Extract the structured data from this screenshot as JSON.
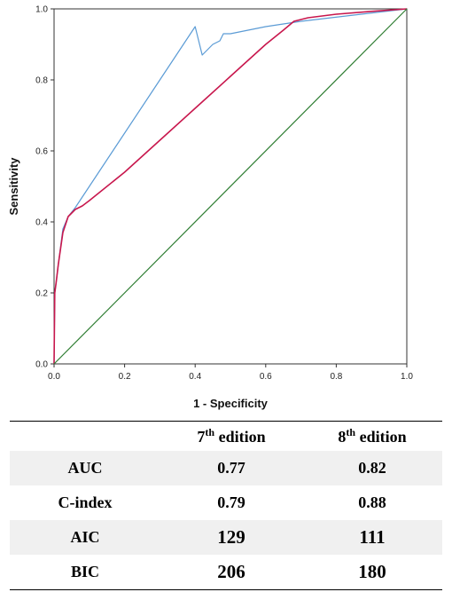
{
  "chart_data": {
    "type": "line",
    "xlabel": "1 - Specificity",
    "ylabel": "Sensitivity",
    "xlim": [
      0,
      1
    ],
    "ylim": [
      0,
      1
    ],
    "xticks": [
      "0.0",
      "0.2",
      "0.4",
      "0.6",
      "0.8",
      "1.0"
    ],
    "yticks": [
      "0.0",
      "0.2",
      "0.4",
      "0.6",
      "0.8",
      "1.0"
    ],
    "grid": false,
    "series": [
      {
        "color": "#5b9bd5",
        "x": [
          0,
          0.002,
          0.006,
          0.012,
          0.025,
          0.04,
          0.06,
          0.1,
          0.15,
          0.2,
          0.25,
          0.3,
          0.35,
          0.4,
          0.42,
          0.44,
          0.45,
          0.47,
          0.48,
          0.5,
          0.6,
          0.7,
          1.0
        ],
        "y": [
          0,
          0.2,
          0.23,
          0.28,
          0.38,
          0.415,
          0.44,
          0.5,
          0.575,
          0.65,
          0.725,
          0.8,
          0.875,
          0.95,
          0.87,
          0.89,
          0.9,
          0.91,
          0.93,
          0.93,
          0.95,
          0.965,
          1.0
        ]
      },
      {
        "color": "#c8174d",
        "x": [
          0,
          0.002,
          0.006,
          0.012,
          0.025,
          0.04,
          0.06,
          0.08,
          0.1,
          0.2,
          0.3,
          0.4,
          0.5,
          0.6,
          0.65,
          0.68,
          0.7,
          0.72,
          0.8,
          0.9,
          1.0
        ],
        "y": [
          0,
          0.2,
          0.23,
          0.28,
          0.37,
          0.415,
          0.435,
          0.445,
          0.46,
          0.54,
          0.63,
          0.72,
          0.81,
          0.9,
          0.94,
          0.965,
          0.97,
          0.975,
          0.985,
          0.993,
          1.0
        ]
      },
      {
        "color": "#2e7d32",
        "x": [
          0,
          1
        ],
        "y": [
          0,
          1
        ]
      }
    ]
  },
  "table": {
    "headers": [
      {
        "main": "",
        "sup": "",
        "rest": ""
      },
      {
        "main": "7",
        "sup": "th",
        "rest": " edition"
      },
      {
        "main": "8",
        "sup": "th",
        "rest": " edition"
      }
    ],
    "rows": [
      {
        "label": "AUC",
        "v7": "0.77",
        "v8": "0.82"
      },
      {
        "label": "C-index",
        "v7": "0.79",
        "v8": "0.88"
      },
      {
        "label": "AIC",
        "v7": "129",
        "v8": "111"
      },
      {
        "label": "BIC",
        "v7": "206",
        "v8": "180"
      }
    ]
  }
}
